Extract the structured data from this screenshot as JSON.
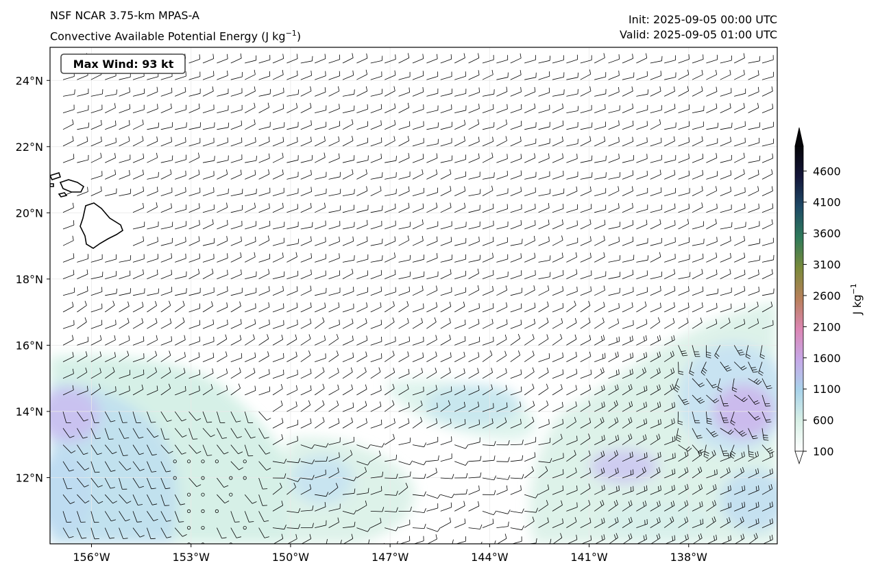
{
  "header": {
    "model": "NSF NCAR 3.75-km MPAS-A",
    "field_prefix": "Convective Available Potential Energy (J kg",
    "field_exp": "−1",
    "field_suffix": ")",
    "init": "Init: 2025-09-05 00:00 UTC",
    "valid": "Valid: 2025-09-05 01:00 UTC"
  },
  "map": {
    "max_wind_label": "Max Wind: 93 kt",
    "lat_labels": [
      "24°N",
      "22°N",
      "20°N",
      "18°N",
      "16°N",
      "14°N",
      "12°N"
    ],
    "lat_values": [
      24,
      22,
      20,
      18,
      16,
      14,
      12
    ],
    "lon_labels": [
      "156°W",
      "153°W",
      "150°W",
      "147°W",
      "144°W",
      "141°W",
      "138°W"
    ],
    "lon_values": [
      -156,
      -153,
      -150,
      -147,
      -144,
      -141,
      -138
    ],
    "lat_range": [
      10,
      25
    ],
    "lon_range": [
      -157.25,
      -135.33
    ]
  },
  "colorbar": {
    "ticks": [
      "4600",
      "4100",
      "3600",
      "3100",
      "2600",
      "2100",
      "1600",
      "1100",
      "600",
      "100"
    ],
    "tick_values": [
      4600,
      4100,
      3600,
      3100,
      2600,
      2100,
      1600,
      1100,
      600,
      100
    ],
    "range": [
      100,
      5000
    ],
    "unit_base": "J kg",
    "unit_exp": "−1",
    "colors": [
      "#ffffff",
      "#d8f0e6",
      "#a9d3ea",
      "#c6a8e8",
      "#dc86b4",
      "#b8805a",
      "#7a8a3a",
      "#2f7a5a",
      "#1e4a66",
      "#14163a",
      "#050508"
    ]
  }
}
